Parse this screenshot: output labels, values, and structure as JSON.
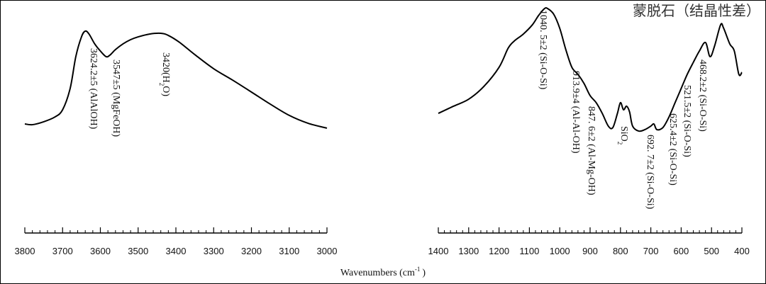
{
  "chart_data": [
    {
      "type": "line",
      "xlabel": {
        "text": "Wavenumbers (cm",
        "sup": "-1",
        "end": ")"
      },
      "x": [
        3800,
        3780,
        3750,
        3720,
        3700,
        3680,
        3665,
        3650,
        3640,
        3630,
        3615,
        3600,
        3585,
        3575,
        3560,
        3540,
        3520,
        3500,
        3470,
        3440,
        3420,
        3390,
        3350,
        3300,
        3250,
        3200,
        3150,
        3100,
        3050,
        3000
      ],
      "values": [
        13.9,
        13.3,
        15.6,
        19.4,
        25,
        41.7,
        66.7,
        82.2,
        86.7,
        84.4,
        76.7,
        71.1,
        66.7,
        67.8,
        72.2,
        76.7,
        80,
        82.2,
        84.4,
        85,
        83.3,
        77.8,
        68.3,
        57.2,
        48.3,
        38.9,
        29.4,
        20.6,
        14.4,
        10.6
      ],
      "color": "#000000",
      "xlim": [
        3800,
        3000
      ],
      "ylim": [
        0,
        110
      ],
      "xticks": [
        3800,
        3700,
        3600,
        3500,
        3400,
        3300,
        3200,
        3100,
        3000
      ],
      "xminorticks": [
        3780,
        3760,
        3740,
        3720,
        3680,
        3660,
        3640,
        3620,
        3580,
        3560,
        3540,
        3520,
        3480,
        3460,
        3440,
        3420,
        3380,
        3360,
        3340,
        3320,
        3280,
        3260,
        3240,
        3220,
        3180,
        3160,
        3140,
        3120,
        3080,
        3060,
        3040,
        3020
      ],
      "annotations": [
        {
          "text": "3624.2±5 (AlAlOH)"
        },
        {
          "text": "3547±5 (MgFeOH)"
        },
        {
          "text": "3420(H",
          "sub": "2",
          "end": "O)"
        }
      ]
    },
    {
      "type": "line",
      "title": "蒙脱石（结晶性差）",
      "x": [
        1400,
        1350,
        1300,
        1250,
        1200,
        1170,
        1150,
        1120,
        1090,
        1070,
        1050,
        1040,
        1020,
        1000,
        980,
        960,
        940,
        920,
        900,
        880,
        860,
        840,
        825,
        810,
        800,
        790,
        780,
        770,
        760,
        740,
        720,
        700,
        690,
        680,
        660,
        640,
        620,
        600,
        580,
        560,
        540,
        520,
        505,
        490,
        470,
        460,
        440,
        425,
        410,
        400
      ],
      "values": [
        22.2,
        27.8,
        33.3,
        43.3,
        58.3,
        73.3,
        78.9,
        84.4,
        91.7,
        98.9,
        104.4,
        104.4,
        100,
        88.9,
        72.2,
        58.3,
        52.8,
        45.6,
        36.1,
        30.6,
        22.2,
        12.2,
        11.1,
        22.2,
        30.6,
        25,
        27.8,
        23.3,
        12.2,
        8.3,
        9.4,
        12.2,
        13.9,
        9.4,
        11.1,
        19.4,
        30.6,
        41.7,
        52.8,
        62.2,
        71.1,
        77.8,
        66.7,
        75,
        91.7,
        88.9,
        76.7,
        71.1,
        52.8,
        54.4
      ],
      "color": "#000000",
      "xlim": [
        1400,
        400
      ],
      "ylim": [
        0,
        110
      ],
      "xticks": [
        1400,
        1300,
        1200,
        1100,
        1000,
        900,
        800,
        700,
        600,
        500,
        400
      ],
      "xminorticks": [
        1380,
        1360,
        1340,
        1320,
        1280,
        1260,
        1240,
        1220,
        1180,
        1160,
        1140,
        1120,
        1080,
        1060,
        1040,
        1020,
        980,
        960,
        940,
        920,
        880,
        860,
        840,
        820,
        780,
        760,
        740,
        720,
        680,
        660,
        640,
        620,
        580,
        560,
        540,
        520,
        480,
        460,
        440,
        420
      ],
      "annotations": [
        {
          "text": "1040. 5±2 (Si-O-Si)"
        },
        {
          "text": "913.9±4 (Al-Al-OH)"
        },
        {
          "text": "847. 6±2 (Al-Mg-OH)"
        },
        {
          "text": "SiO",
          "sub": "2"
        },
        {
          "text": "692. 7±2 (Si-O-Si)"
        },
        {
          "text": "625.4±2 (Si-O-Si)"
        },
        {
          "text": "521.5±2 (Si-O-Si)"
        },
        {
          "text": "468.2±2 (Si-O-Si)"
        }
      ]
    }
  ]
}
